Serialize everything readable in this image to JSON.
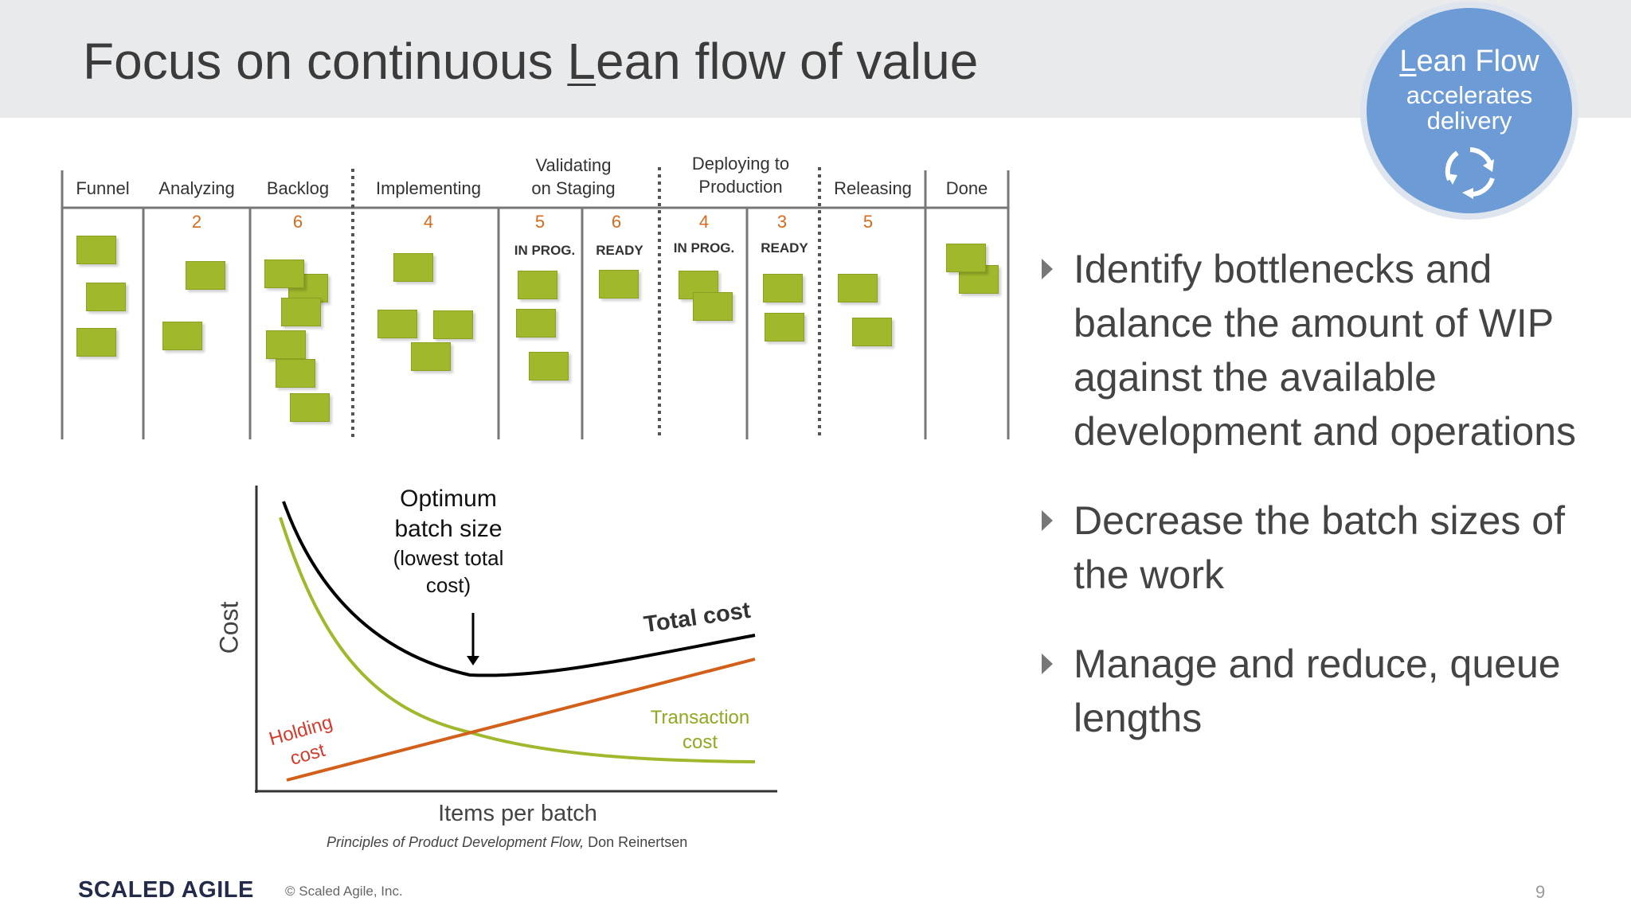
{
  "header": {
    "title_prefix": "Focus on continuous ",
    "title_underlined": "L",
    "title_suffix": "ean flow of value"
  },
  "badge": {
    "line1_underlined": "L",
    "line1_rest": "ean Flow",
    "line2": "accelerates",
    "line3": "delivery",
    "icon": "refresh-cycle-icon",
    "color": "#6d9bd6"
  },
  "kanban": {
    "columns": [
      {
        "label": "Funnel",
        "wip": ""
      },
      {
        "label": "Analyzing",
        "wip": "2"
      },
      {
        "label": "Backlog",
        "wip": "6"
      },
      {
        "label": "Implementing",
        "wip": "4"
      },
      {
        "label": "Validating\non Staging",
        "wip": "5",
        "sub_wip": "6",
        "sub": [
          "IN PROG.",
          "READY"
        ]
      },
      {
        "label": "Deploying to\nProduction",
        "wip": "4",
        "sub_wip": "3",
        "sub": [
          "IN PROG.",
          "READY"
        ]
      },
      {
        "label": "Releasing",
        "wip": "5"
      },
      {
        "label": "Done",
        "wip": ""
      }
    ],
    "card_color": "#9fb82c",
    "wip_color": "#d56a1d"
  },
  "bullets": [
    "Identify bottlenecks and balance the amount of WIP against the available development and operations",
    "Decrease the batch sizes of the work",
    "Manage and reduce, queue lengths"
  ],
  "chart_data": {
    "type": "line",
    "xlabel": "Items per batch",
    "ylabel": "Cost",
    "series": [
      {
        "name": "Total cost",
        "color": "#000000"
      },
      {
        "name": "Transaction cost",
        "color": "#9fb82c"
      },
      {
        "name": "Holding cost",
        "color": "#d2601a"
      }
    ],
    "annotation": {
      "line1": "Optimum",
      "line2": "batch size",
      "line3": "(lowest total",
      "line4": "cost)"
    },
    "labels": {
      "total": "Total cost",
      "transaction_1": "Transaction",
      "transaction_2": "cost",
      "holding_1": "Holding",
      "holding_2": "cost"
    }
  },
  "source": {
    "italic": "Principles of Product Development Flow,",
    "rest": " Don Reinertsen"
  },
  "footer": {
    "logo": "SCALED AGILE",
    "copyright": "© Scaled Agile, Inc.",
    "page": "9"
  }
}
